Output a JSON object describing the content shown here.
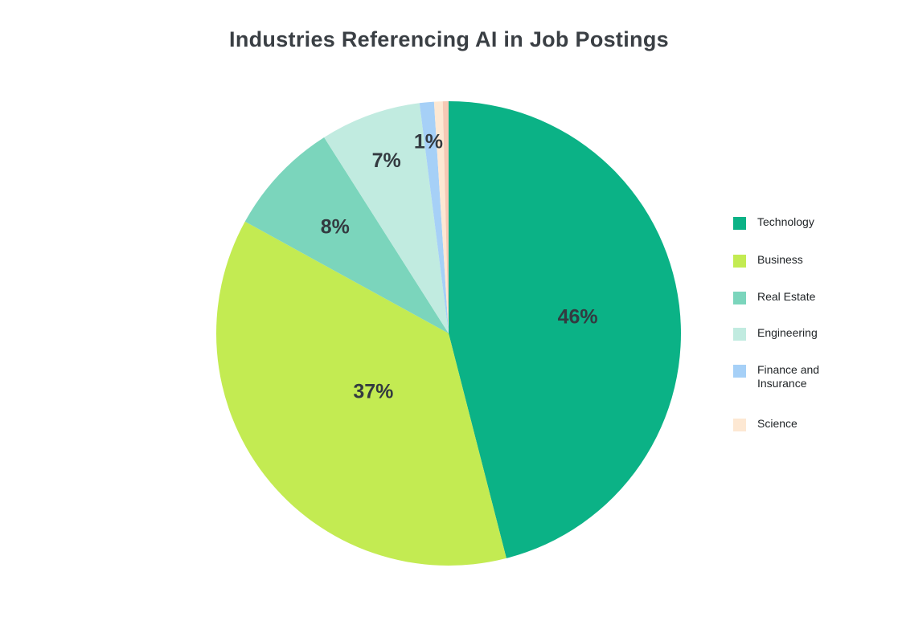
{
  "chart_data": {
    "type": "pie",
    "title": "Industries Referencing AI in Job Postings",
    "categories": [
      "Technology",
      "Business",
      "Real Estate",
      "Engineering",
      "Finance and Insurance",
      "Science",
      ""
    ],
    "values": [
      46,
      37,
      8,
      7,
      1,
      0.6,
      0.4
    ],
    "data_labels": [
      "46%",
      "37%",
      "8%",
      "7%",
      "1%",
      "",
      ""
    ],
    "colors": [
      "#0bb286",
      "#c3eb52",
      "#7bd5bc",
      "#c1ebe0",
      "#a6d0f7",
      "#fde8d3",
      "#f6c9b5"
    ],
    "legend": {
      "position": "right",
      "items": [
        {
          "label": "Technology",
          "color": "#0bb286"
        },
        {
          "label": "Business",
          "color": "#c3eb52"
        },
        {
          "label": "Real Estate",
          "color": "#7bd5bc"
        },
        {
          "label": "Engineering",
          "color": "#c1ebe0"
        },
        {
          "label": "Finance and Insurance",
          "color": "#a6d0f7"
        },
        {
          "label": "Science",
          "color": "#fde8d3"
        }
      ]
    }
  }
}
